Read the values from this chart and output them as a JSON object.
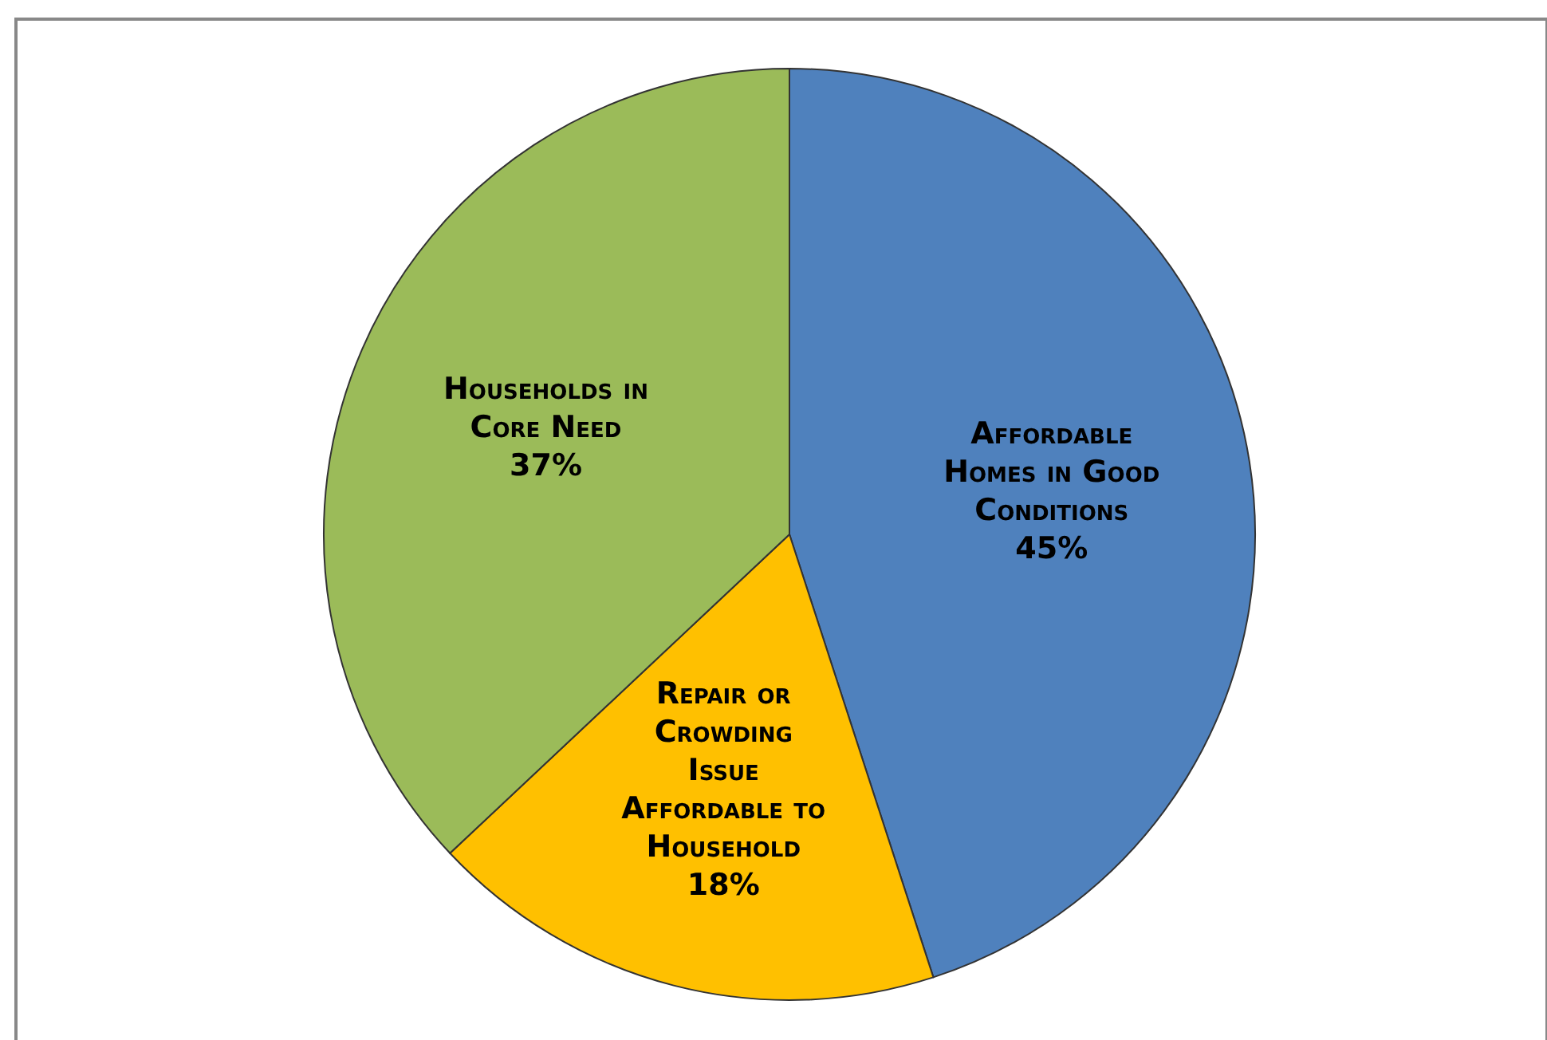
{
  "chart_data": {
    "type": "pie",
    "categories": [
      "Affordable Homes in Good Conditions",
      "Repair or Crowding Issue Affordable to Household",
      "Households in Core Need"
    ],
    "values": [
      45,
      18,
      37
    ],
    "colors": [
      "#4f81bd",
      "#ffc000",
      "#9bbb59"
    ],
    "value_labels": [
      "45%",
      "18%",
      "37%"
    ]
  }
}
